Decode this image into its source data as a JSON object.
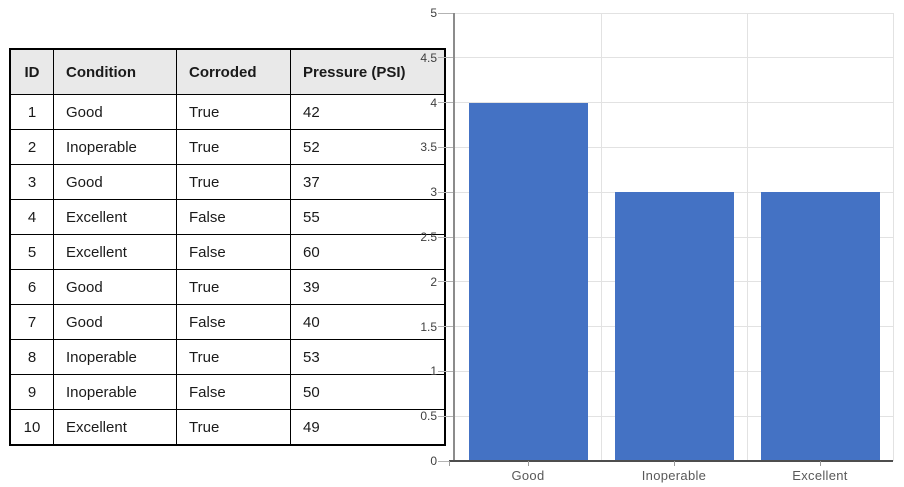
{
  "table": {
    "columns": [
      "ID",
      "Condition",
      "Corroded",
      "Pressure (PSI)"
    ],
    "rows": [
      [
        "1",
        "Good",
        "True",
        "42"
      ],
      [
        "2",
        "Inoperable",
        "True",
        "52"
      ],
      [
        "3",
        "Good",
        "True",
        "37"
      ],
      [
        "4",
        "Excellent",
        "False",
        "55"
      ],
      [
        "5",
        "Excellent",
        "False",
        "60"
      ],
      [
        "6",
        "Good",
        "True",
        "39"
      ],
      [
        "7",
        "Good",
        "False",
        "40"
      ],
      [
        "8",
        "Inoperable",
        "True",
        "53"
      ],
      [
        "9",
        "Inoperable",
        "False",
        "50"
      ],
      [
        "10",
        "Excellent",
        "True",
        "49"
      ]
    ],
    "header_bg": "#e9e9e9",
    "border_color": "#000000"
  },
  "chart_data": {
    "type": "bar",
    "categories": [
      "Good",
      "Inoperable",
      "Excellent"
    ],
    "values": [
      4,
      3,
      3
    ],
    "title": "",
    "xlabel": "",
    "ylabel": "",
    "ylim": [
      0,
      5
    ],
    "ytick_step": 0.5,
    "yticks": [
      0,
      0.5,
      1,
      1.5,
      2,
      2.5,
      3,
      3.5,
      4,
      4.5,
      5
    ],
    "grid": true,
    "legend": false,
    "bar_color": "#4472c4",
    "gridline_color": "#e2e2e2",
    "axis_color": "#8c8c8c",
    "tick_label_color": "#595959"
  }
}
